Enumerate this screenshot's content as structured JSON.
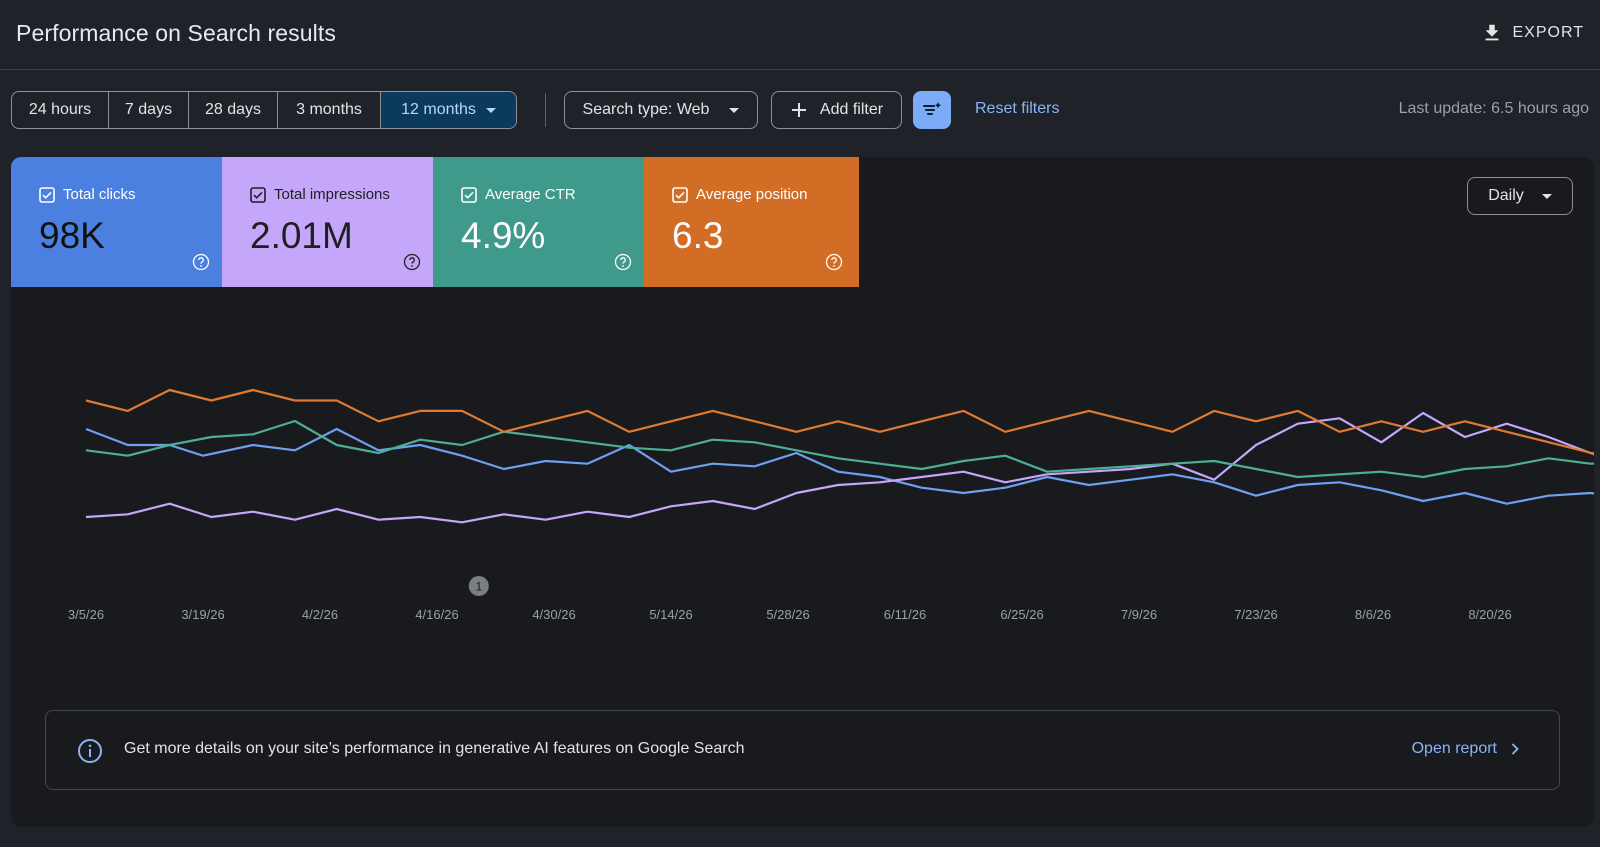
{
  "header": {
    "title": "Performance on Search results",
    "export_label": "EXPORT"
  },
  "toolbar": {
    "ranges": [
      "24 hours",
      "7 days",
      "28 days",
      "3 months",
      "12 months"
    ],
    "active_range": "12 months",
    "search_type": "Search type: Web",
    "add_filter": "Add filter",
    "reset_filters": "Reset filters",
    "last_update": "Last update: 6.5 hours ago"
  },
  "metrics": [
    {
      "label": "Total clicks",
      "value": "98K",
      "color": "#4b80e0",
      "text_color": "#ffffff",
      "value_color": "#111111",
      "checked": true
    },
    {
      "label": "Total impressions",
      "value": "2.01M",
      "color": "#c4a6fb",
      "text_color": "#1f1f1f",
      "value_color": "#1f1f1f",
      "checked": true
    },
    {
      "label": "Average CTR",
      "value": "4.9%",
      "color": "#3f9a8b",
      "text_color": "#ffffff",
      "value_color": "#ffffff",
      "checked": true
    },
    {
      "label": "Average position",
      "value": "6.3",
      "color": "#d26d26",
      "text_color": "#ffffff",
      "value_color": "#ffffff",
      "checked": true
    }
  ],
  "granularity": "Daily",
  "annotation_marker": "1",
  "info": {
    "text": "Get more details on your site’s performance in generative AI features on Google Search",
    "link": "Open report"
  },
  "chart_data": {
    "type": "line",
    "x_ticks": [
      "3/5/26",
      "3/19/26",
      "4/2/26",
      "4/16/26",
      "4/30/26",
      "5/14/26",
      "5/28/26",
      "6/11/26",
      "6/25/26",
      "7/9/26",
      "7/23/26",
      "8/6/26",
      "8/20/26"
    ],
    "date_range": [
      "3/5/26",
      "8/22/26"
    ],
    "annotation": {
      "label": "1",
      "date": "4/21/26"
    },
    "y_axis_visible": false,
    "grid": false,
    "legend": "metric cards at top",
    "series": [
      {
        "name": "Total clicks",
        "color": "#6f9ff0",
        "points": [
          [
            0,
            68
          ],
          [
            5,
            62
          ],
          [
            10,
            62
          ],
          [
            14,
            58
          ],
          [
            20,
            62
          ],
          [
            25,
            60
          ],
          [
            30,
            68
          ],
          [
            35,
            60
          ],
          [
            40,
            62
          ],
          [
            45,
            58
          ],
          [
            50,
            53
          ],
          [
            55,
            56
          ],
          [
            60,
            55
          ],
          [
            65,
            62
          ],
          [
            70,
            52
          ],
          [
            75,
            55
          ],
          [
            80,
            54
          ],
          [
            85,
            59
          ],
          [
            90,
            52
          ],
          [
            95,
            50
          ],
          [
            100,
            46
          ],
          [
            105,
            44
          ],
          [
            110,
            46
          ],
          [
            115,
            50
          ],
          [
            120,
            47
          ],
          [
            125,
            49
          ],
          [
            130,
            51
          ],
          [
            135,
            48
          ],
          [
            140,
            43
          ],
          [
            145,
            47
          ],
          [
            150,
            48
          ],
          [
            155,
            45
          ],
          [
            160,
            41
          ],
          [
            165,
            44
          ],
          [
            170,
            40
          ],
          [
            175,
            43
          ],
          [
            180,
            44
          ],
          [
            185,
            42
          ]
        ]
      },
      {
        "name": "Total impressions",
        "color": "#c4a6fb",
        "points": [
          [
            0,
            35
          ],
          [
            5,
            36
          ],
          [
            10,
            40
          ],
          [
            15,
            35
          ],
          [
            20,
            37
          ],
          [
            25,
            34
          ],
          [
            30,
            38
          ],
          [
            35,
            34
          ],
          [
            40,
            35
          ],
          [
            45,
            33
          ],
          [
            50,
            36
          ],
          [
            55,
            34
          ],
          [
            60,
            37
          ],
          [
            65,
            35
          ],
          [
            70,
            39
          ],
          [
            75,
            41
          ],
          [
            80,
            38
          ],
          [
            85,
            44
          ],
          [
            90,
            47
          ],
          [
            95,
            48
          ],
          [
            100,
            50
          ],
          [
            105,
            52
          ],
          [
            110,
            48
          ],
          [
            115,
            51
          ],
          [
            120,
            52
          ],
          [
            125,
            53
          ],
          [
            130,
            55
          ],
          [
            135,
            49
          ],
          [
            140,
            62
          ],
          [
            145,
            70
          ],
          [
            150,
            72
          ],
          [
            155,
            63
          ],
          [
            160,
            74
          ],
          [
            165,
            65
          ],
          [
            170,
            70
          ],
          [
            175,
            65
          ],
          [
            180,
            59
          ],
          [
            185,
            57
          ]
        ]
      },
      {
        "name": "Average CTR",
        "color": "#4caf93",
        "points": [
          [
            0,
            60
          ],
          [
            5,
            58
          ],
          [
            10,
            62
          ],
          [
            15,
            65
          ],
          [
            20,
            66
          ],
          [
            25,
            71
          ],
          [
            30,
            62
          ],
          [
            35,
            59
          ],
          [
            40,
            64
          ],
          [
            45,
            62
          ],
          [
            50,
            67
          ],
          [
            55,
            65
          ],
          [
            60,
            63
          ],
          [
            65,
            61
          ],
          [
            70,
            60
          ],
          [
            75,
            64
          ],
          [
            80,
            63
          ],
          [
            85,
            60
          ],
          [
            90,
            57
          ],
          [
            95,
            55
          ],
          [
            100,
            53
          ],
          [
            105,
            56
          ],
          [
            110,
            58
          ],
          [
            115,
            52
          ],
          [
            120,
            53
          ],
          [
            125,
            54
          ],
          [
            130,
            55
          ],
          [
            135,
            56
          ],
          [
            140,
            53
          ],
          [
            145,
            50
          ],
          [
            150,
            51
          ],
          [
            155,
            52
          ],
          [
            160,
            50
          ],
          [
            165,
            53
          ],
          [
            170,
            54
          ],
          [
            175,
            57
          ],
          [
            180,
            55
          ],
          [
            185,
            56
          ]
        ]
      },
      {
        "name": "Average position",
        "color": "#e07a33",
        "points": [
          [
            0,
            6.5
          ],
          [
            5,
            6.4
          ],
          [
            10,
            6.6
          ],
          [
            15,
            6.5
          ],
          [
            20,
            6.6
          ],
          [
            25,
            6.5
          ],
          [
            30,
            6.5
          ],
          [
            35,
            6.3
          ],
          [
            40,
            6.4
          ],
          [
            45,
            6.4
          ],
          [
            50,
            6.2
          ],
          [
            55,
            6.3
          ],
          [
            60,
            6.4
          ],
          [
            65,
            6.2
          ],
          [
            70,
            6.3
          ],
          [
            75,
            6.4
          ],
          [
            80,
            6.3
          ],
          [
            85,
            6.2
          ],
          [
            90,
            6.3
          ],
          [
            95,
            6.2
          ],
          [
            100,
            6.3
          ],
          [
            105,
            6.4
          ],
          [
            110,
            6.2
          ],
          [
            115,
            6.3
          ],
          [
            120,
            6.4
          ],
          [
            125,
            6.3
          ],
          [
            130,
            6.2
          ],
          [
            135,
            6.4
          ],
          [
            140,
            6.3
          ],
          [
            145,
            6.4
          ],
          [
            150,
            6.2
          ],
          [
            155,
            6.3
          ],
          [
            160,
            6.2
          ],
          [
            165,
            6.3
          ],
          [
            170,
            6.2
          ],
          [
            175,
            6.1
          ],
          [
            180,
            6.0
          ],
          [
            185,
            5.8
          ]
        ]
      }
    ]
  }
}
